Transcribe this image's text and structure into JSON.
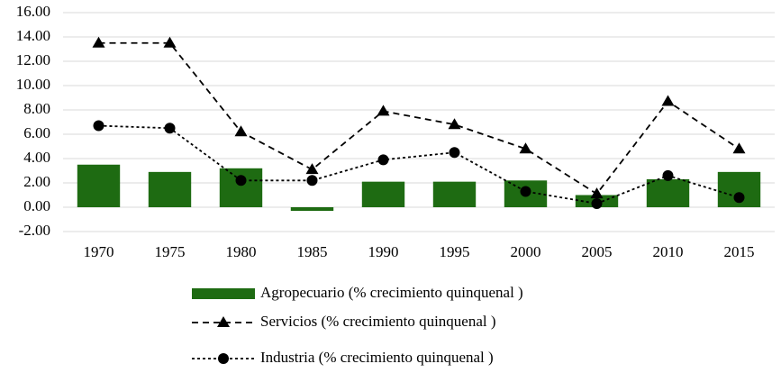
{
  "chart_data": {
    "type": "bar-line",
    "categories": [
      "1970",
      "1975",
      "1980",
      "1985",
      "1990",
      "1995",
      "2000",
      "2005",
      "2010",
      "2015"
    ],
    "series": [
      {
        "name": "Agropecuario (% crecimiento quinquenal )",
        "kind": "bar",
        "color": "#1e6b12",
        "values": [
          3.5,
          2.9,
          3.2,
          -0.3,
          2.1,
          2.1,
          2.2,
          1.0,
          2.3,
          2.9
        ]
      },
      {
        "name": "Servicios (% crecimiento quinquenal )",
        "kind": "line",
        "marker": "triangle",
        "dash": "dashed",
        "color": "#000000",
        "values": [
          13.5,
          13.5,
          6.2,
          3.1,
          7.9,
          6.8,
          4.8,
          1.1,
          8.7,
          4.8
        ]
      },
      {
        "name": "Industria (% crecimiento quinquenal )",
        "kind": "line",
        "marker": "circle",
        "dash": "dotted",
        "color": "#000000",
        "values": [
          6.7,
          6.5,
          2.2,
          2.2,
          3.9,
          4.5,
          1.3,
          0.3,
          2.6,
          0.8
        ]
      }
    ],
    "ylim": [
      -2,
      16
    ],
    "yticks": [
      {
        "value": -2,
        "label": "-2.00"
      },
      {
        "value": 0,
        "label": "0.00"
      },
      {
        "value": 2,
        "label": "2.00"
      },
      {
        "value": 4,
        "label": "4.00"
      },
      {
        "value": 6,
        "label": "6.00"
      },
      {
        "value": 8,
        "label": "8.00"
      },
      {
        "value": 10,
        "label": "10.00"
      },
      {
        "value": 12,
        "label": "12.00"
      },
      {
        "value": 14,
        "label": "14.00"
      },
      {
        "value": 16,
        "label": "16.00"
      }
    ],
    "grid": true,
    "legend": "bottom"
  }
}
